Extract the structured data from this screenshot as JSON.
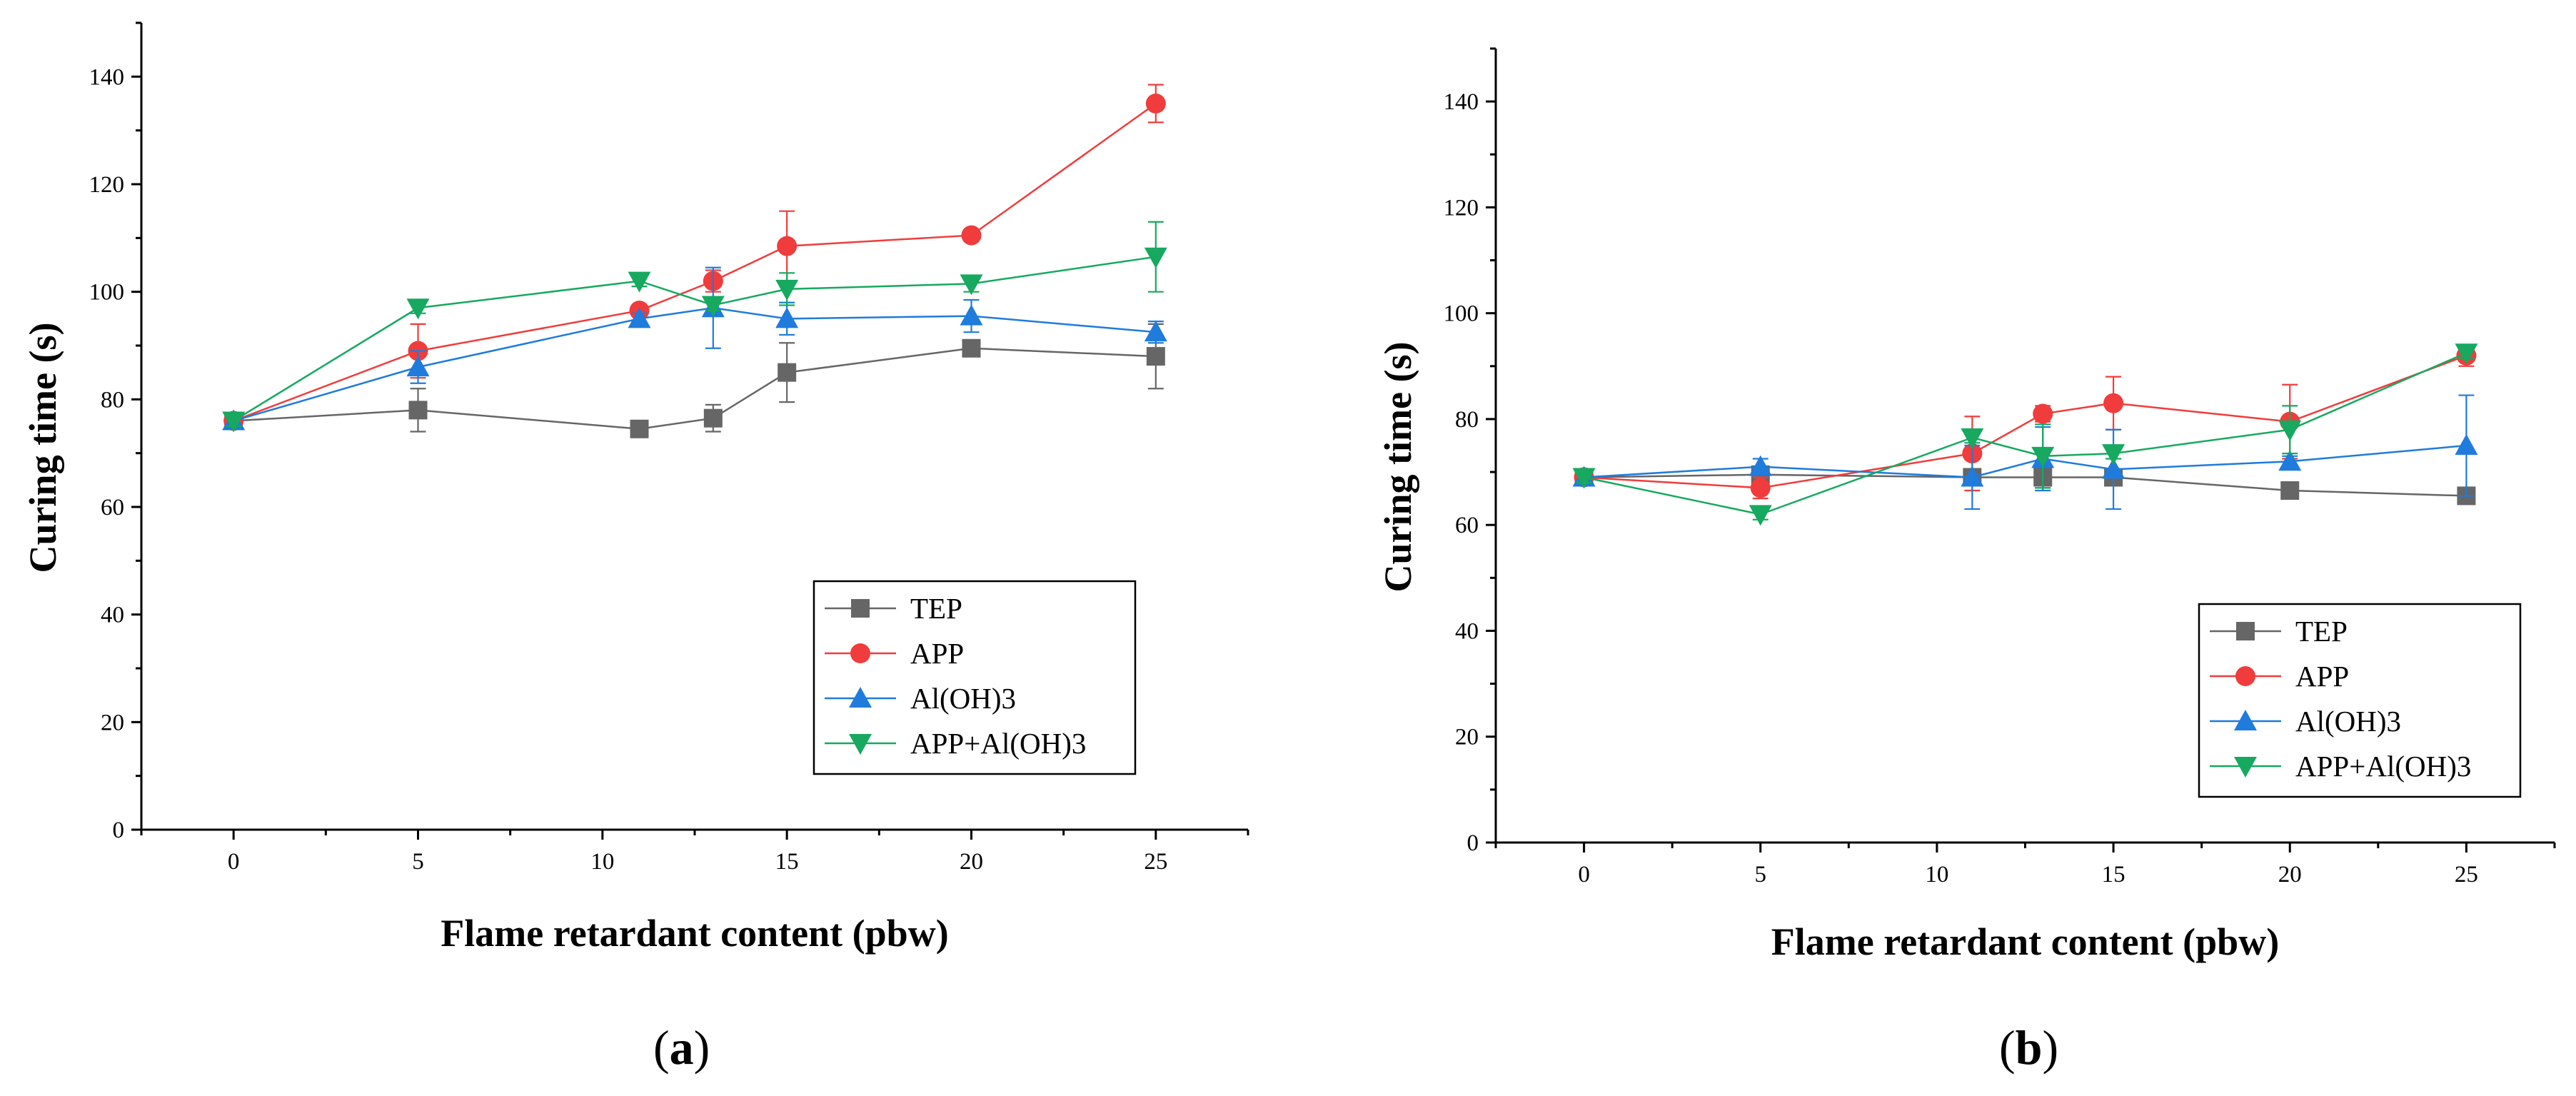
{
  "chart_data": [
    {
      "id": "a",
      "type": "line",
      "panel_label": "a",
      "xlabel": "Flame retardant content (pbw)",
      "ylabel": "Curing time (s)",
      "xlim": [
        -2.5,
        27.5
      ],
      "ylim": [
        0,
        150
      ],
      "xticks": [
        0,
        5,
        10,
        15,
        20,
        25
      ],
      "yticks": [
        0,
        20,
        40,
        60,
        80,
        100,
        120,
        140
      ],
      "legend_position": "lower-right",
      "series": [
        {
          "name": "TEP",
          "color": "#666666",
          "marker": "square",
          "x": [
            0,
            5,
            11,
            13,
            15,
            20,
            25
          ],
          "y": [
            76,
            78,
            74.5,
            76.5,
            85,
            89.5,
            88
          ],
          "err": [
            1,
            4,
            1,
            2.5,
            5.5,
            1,
            6
          ]
        },
        {
          "name": "APP",
          "color": "#f03c3c",
          "marker": "circle",
          "x": [
            0,
            5,
            11,
            13,
            15,
            20,
            25
          ],
          "y": [
            76,
            89,
            96.5,
            102,
            108.5,
            110.5,
            135
          ],
          "err": [
            1,
            5,
            1,
            2,
            6.5,
            1,
            3.5
          ]
        },
        {
          "name": "Al(OH)3",
          "color": "#1f7bdc",
          "marker": "triangle-up",
          "x": [
            0,
            5,
            11,
            13,
            15,
            20,
            25
          ],
          "y": [
            76,
            86,
            95,
            97,
            95,
            95.5,
            92.5
          ],
          "err": [
            1,
            3,
            1,
            7.5,
            3,
            3,
            2
          ]
        },
        {
          "name": "APP+Al(OH)3",
          "color": "#16a95f",
          "marker": "triangle-down",
          "x": [
            0,
            5,
            11,
            13,
            15,
            20,
            25
          ],
          "y": [
            76,
            97,
            102,
            97.5,
            100.5,
            101.5,
            106.5
          ],
          "err": [
            1,
            1,
            1,
            1,
            3,
            1.5,
            6.5
          ]
        }
      ]
    },
    {
      "id": "b",
      "type": "line",
      "panel_label": "b",
      "xlabel": "Flame retardant content (pbw)",
      "ylabel": "Curing time (s)",
      "xlim": [
        -2.5,
        27.5
      ],
      "ylim": [
        0,
        150
      ],
      "xticks": [
        0,
        5,
        10,
        15,
        20,
        25
      ],
      "yticks": [
        0,
        20,
        40,
        60,
        80,
        100,
        120,
        140
      ],
      "legend_position": "lower-right",
      "series": [
        {
          "name": "TEP",
          "color": "#666666",
          "marker": "square",
          "x": [
            0,
            5,
            11,
            13,
            15,
            20,
            25
          ],
          "y": [
            69,
            69.5,
            69,
            69,
            69,
            66.5,
            65.5
          ],
          "err": [
            1,
            1,
            1,
            2,
            1,
            1,
            1
          ]
        },
        {
          "name": "APP",
          "color": "#f03c3c",
          "marker": "circle",
          "x": [
            0,
            5,
            11,
            13,
            15,
            20,
            25
          ],
          "y": [
            69,
            67,
            73.5,
            81,
            83,
            79.5,
            92
          ],
          "err": [
            1,
            2,
            7,
            1.5,
            5,
            7,
            2
          ]
        },
        {
          "name": "Al(OH)3",
          "color": "#1f7bdc",
          "marker": "triangle-up",
          "x": [
            0,
            5,
            11,
            13,
            15,
            20,
            25
          ],
          "y": [
            69,
            71,
            69,
            72.5,
            70.5,
            72,
            75
          ],
          "err": [
            1,
            1.5,
            6,
            6,
            7.5,
            1,
            9.5
          ]
        },
        {
          "name": "APP+Al(OH)3",
          "color": "#16a95f",
          "marker": "triangle-down",
          "x": [
            0,
            5,
            11,
            13,
            15,
            20,
            25
          ],
          "y": [
            69,
            62,
            76.5,
            73,
            73.5,
            78,
            92.5
          ],
          "err": [
            1,
            1,
            1,
            6,
            1,
            4.5,
            1
          ]
        }
      ]
    }
  ]
}
